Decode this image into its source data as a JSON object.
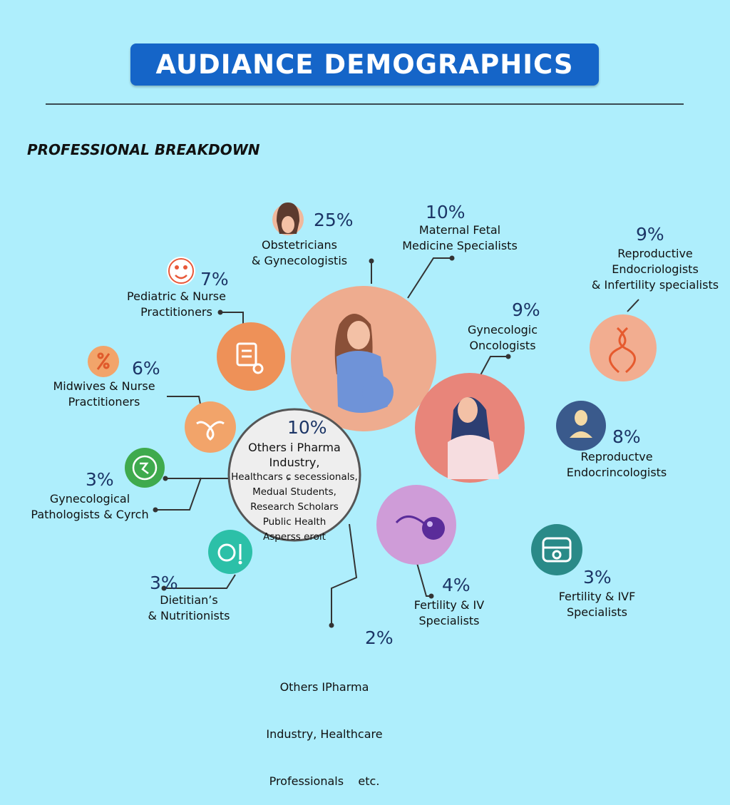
{
  "header": {
    "title": "AUDIANCE DEMOGRAPHICS"
  },
  "section": {
    "subtitle": "PROFESSIONAL BREAKDOWN"
  },
  "colors": {
    "background": "#aeeefc",
    "title_bar": "#1565c8",
    "percent_text": "#1c3566"
  },
  "chart_data": {
    "type": "bubble-infographic",
    "title": "AUDIANCE DEMOGRAPHICS",
    "subtitle": "PROFESSIONAL BREAKDOWN",
    "segments": [
      {
        "id": "obgyn",
        "percent": "25%",
        "value": 25,
        "label_lines": [
          "Obstetricians",
          "& Gynecologistis"
        ],
        "icon": "woman-avatar-icon",
        "color": "#eeac8f"
      },
      {
        "id": "mfm",
        "percent": "10%",
        "value": 10,
        "label_lines": [
          "Maternal Fetal",
          "Medicine Specialists"
        ]
      },
      {
        "id": "repro-infert",
        "percent": "9%",
        "value": 9,
        "label_lines": [
          "Reproductive",
          "Endocriologists",
          "& Infertility specialists"
        ],
        "icon": "dna-icon",
        "color": "#f2ad90"
      },
      {
        "id": "peds",
        "percent": "7%",
        "value": 7,
        "label_lines": [
          "Pediatric & Nurse",
          "Practitioners"
        ],
        "icon": "clipboard-icon",
        "color": "#ee9158"
      },
      {
        "id": "gyn-onc",
        "percent": "9%",
        "value": 9,
        "label_lines": [
          "Gynecologic",
          "Oncologists"
        ],
        "icon": "woman-portrait-icon",
        "color": "#e8857a"
      },
      {
        "id": "midwives",
        "percent": "6%",
        "value": 6,
        "label_lines": [
          "Midwives & Nurse",
          "Practitioners"
        ],
        "icon": "uterus-icon",
        "color": "#f2a46a"
      },
      {
        "id": "repro-endo",
        "percent": "8%",
        "value": 8,
        "label_lines": [
          "Reproductve",
          "Endocrincologists"
        ],
        "icon": "person-icon",
        "color": "#3a5a8c"
      },
      {
        "id": "gyn-path",
        "percent": "3%",
        "value": 3,
        "label_lines": [
          "Gynecological",
          "Pathologists & Cyrch"
        ],
        "icon": "microscope-icon",
        "color": "#3faa4d"
      },
      {
        "id": "others-center",
        "percent": "10%",
        "value": 10,
        "label_lines": [
          "Others i Pharma",
          "Industry,",
          "Healthcars ɕ secessionals,",
          "Medual Students,",
          "Research Scholars",
          "Public Health",
          "Asperss eroıt"
        ]
      },
      {
        "id": "dietitians",
        "percent": "3%",
        "value": 3,
        "label_lines": [
          "Dietitian’s",
          "& Nutritionists"
        ],
        "icon": "nutrition-icon",
        "color": "#2cc0a8"
      },
      {
        "id": "fertility-iv",
        "percent": "4%",
        "value": 4,
        "label_lines": [
          "Fertility & IV",
          "Specialists"
        ],
        "icon": "sperm-egg-icon",
        "color": "#cf9cd8"
      },
      {
        "id": "fertility-ivf",
        "percent": "3%",
        "value": 3,
        "label_lines": [
          "Fertility & IVF",
          "Specialists"
        ],
        "icon": "petri-dish-icon",
        "color": "#2a8a88"
      },
      {
        "id": "others-bottom",
        "percent": "2%",
        "value": 2,
        "label_lines": [
          "Others IPharma",
          "Industry, Healthcare",
          "Professionals    etc."
        ]
      }
    ]
  }
}
